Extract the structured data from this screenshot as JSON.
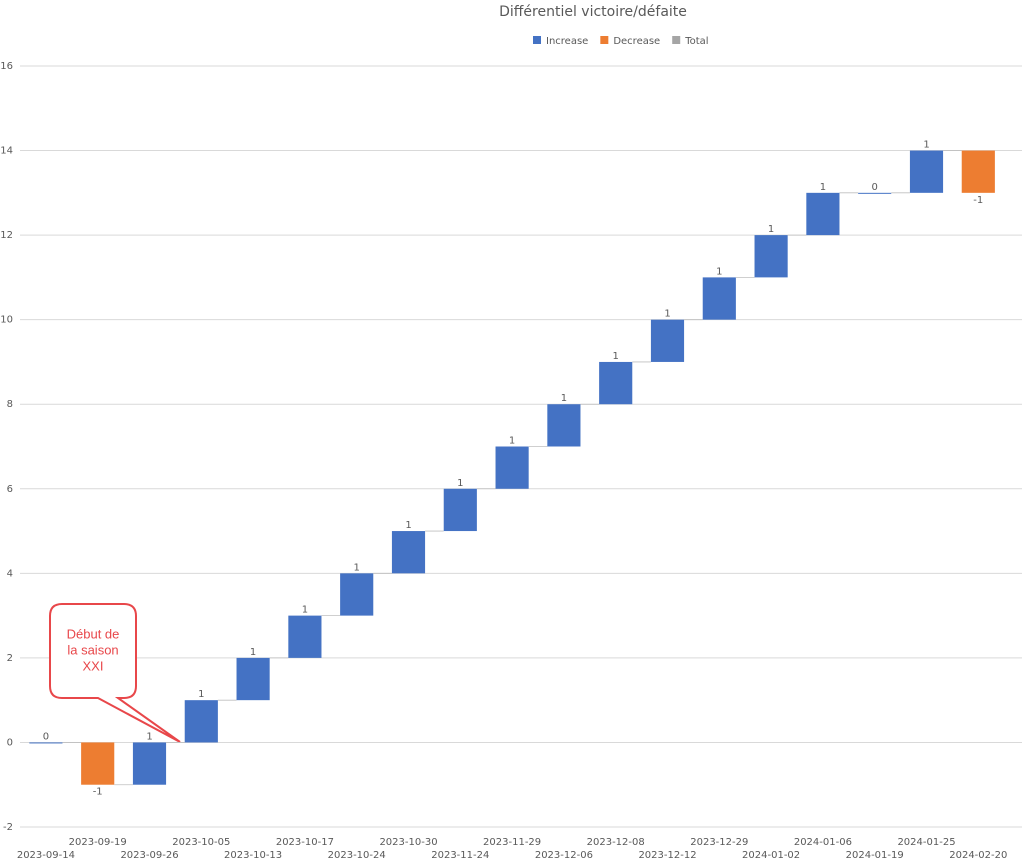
{
  "chart_data": {
    "type": "waterfall",
    "title": "Différentiel victoire/défaite",
    "legend": [
      {
        "name": "Increase",
        "color": "#4472c4"
      },
      {
        "name": "Decrease",
        "color": "#ed7d31"
      },
      {
        "name": "Total",
        "color": "#a5a5a5"
      }
    ],
    "categories": [
      "2023-09-14",
      "2023-09-19",
      "2023-09-26",
      "2023-10-05",
      "2023-10-13",
      "2023-10-17",
      "2023-10-24",
      "2023-10-30",
      "2023-11-24",
      "2023-11-29",
      "2023-12-06",
      "2023-12-08",
      "2023-12-12",
      "2023-12-29",
      "2024-01-02",
      "2024-01-06",
      "2024-01-19",
      "2024-01-25",
      "2024-02-20"
    ],
    "values": [
      0,
      -1,
      1,
      1,
      1,
      1,
      1,
      1,
      1,
      1,
      1,
      1,
      1,
      1,
      1,
      1,
      0,
      1,
      -1
    ],
    "ylim": [
      -2,
      16
    ],
    "yticks": [
      -2,
      0,
      2,
      4,
      6,
      8,
      10,
      12,
      14,
      16
    ],
    "grid": true,
    "annotation": [
      "Début de",
      "la saison",
      "XXI"
    ]
  }
}
